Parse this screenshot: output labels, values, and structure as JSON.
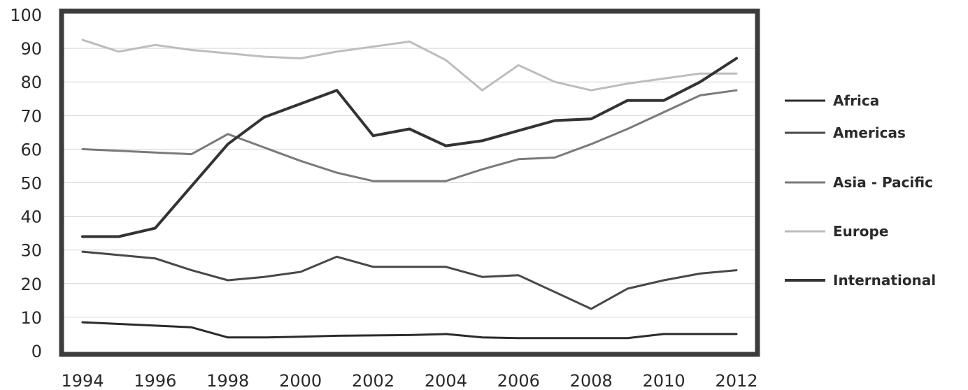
{
  "chart_data": {
    "type": "line",
    "title": "",
    "xlabel": "",
    "ylabel": "",
    "x": [
      1994,
      1995,
      1996,
      1997,
      1998,
      1999,
      2000,
      2001,
      2002,
      2003,
      2004,
      2005,
      2006,
      2007,
      2008,
      2009,
      2010,
      2011,
      2012
    ],
    "x_tick_labels": [
      "1994",
      "1996",
      "1998",
      "2000",
      "2002",
      "2004",
      "2006",
      "2008",
      "2010",
      "2012"
    ],
    "x_tick_values": [
      1994,
      1996,
      1998,
      2000,
      2002,
      2004,
      2006,
      2008,
      2010,
      2012
    ],
    "y_tick_labels": [
      "0",
      "10",
      "20",
      "30",
      "40",
      "50",
      "60",
      "70",
      "80",
      "90",
      "100"
    ],
    "ylim": [
      0,
      100
    ],
    "xlim": [
      1994,
      2012
    ],
    "grid": "horizontal",
    "legend_position": "right",
    "series": [
      {
        "name": "Africa",
        "color": "#2b2b2b",
        "values": [
          8.5,
          8,
          7.5,
          7,
          4,
          4,
          4.2,
          4.5,
          4.6,
          4.7,
          5,
          4,
          3.8,
          3.8,
          3.8,
          3.8,
          5,
          5,
          5
        ]
      },
      {
        "name": "Americas",
        "color": "#484848",
        "values": [
          29.5,
          28.5,
          27.5,
          24,
          21,
          22,
          23.5,
          28,
          25,
          25,
          25,
          22,
          22.5,
          17.5,
          12.5,
          18.5,
          21,
          23,
          24
        ]
      },
      {
        "name": "Asia - Pacific",
        "color": "#7a7a7a",
        "values": [
          60,
          59.5,
          59,
          58.5,
          64.5,
          60.5,
          56.5,
          53,
          50.5,
          50.5,
          50.5,
          54,
          57,
          57.5,
          61.5,
          66,
          71,
          76,
          77.5
        ]
      },
      {
        "name": "Europe",
        "color": "#bdbdbd",
        "values": [
          92.5,
          89,
          91,
          89.5,
          88.5,
          87.5,
          87,
          89,
          90.5,
          92,
          86.5,
          77.5,
          85,
          80,
          77.5,
          79.5,
          81,
          82.5,
          82.5
        ]
      },
      {
        "name": "International",
        "color": "#333333",
        "values": [
          34,
          34,
          36.5,
          49,
          61.5,
          69.5,
          73.5,
          77.5,
          64,
          66,
          61,
          62.5,
          65.5,
          68.5,
          69,
          74.5,
          74.5,
          80,
          87
        ]
      }
    ]
  }
}
